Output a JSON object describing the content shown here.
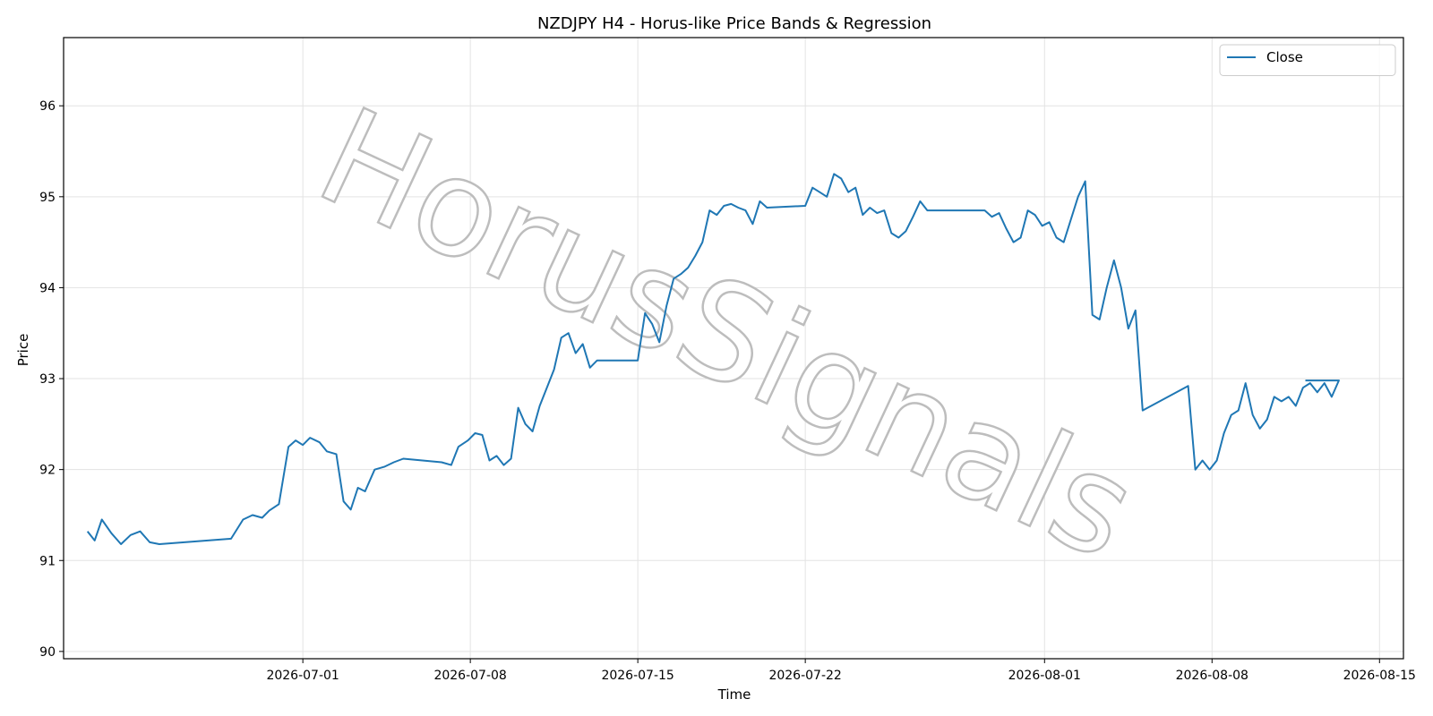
{
  "chart_data": {
    "type": "line",
    "title": "NZDJPY H4 - Horus-like Price Bands & Regression",
    "xlabel": "Time",
    "ylabel": "Price",
    "ylim": [
      89.92,
      96.75
    ],
    "xlim": [
      "2026-06-21",
      "2026-08-16"
    ],
    "yticks": [
      90,
      91,
      92,
      93,
      94,
      95,
      96
    ],
    "xticks": [
      "2026-07-01",
      "2026-07-08",
      "2026-07-15",
      "2026-07-22",
      "2026-08-01",
      "2026-08-08",
      "2026-08-15"
    ],
    "grid": true,
    "legend_position": "top-right",
    "watermark": "HorusSignals",
    "series": [
      {
        "name": "Close",
        "color": "#1f77b4",
        "points": [
          [
            "2026-06-22",
            91.32
          ],
          [
            "2026-06-22.3",
            91.22
          ],
          [
            "2026-06-22.6",
            91.45
          ],
          [
            "2026-06-23",
            91.3
          ],
          [
            "2026-06-23.4",
            91.18
          ],
          [
            "2026-06-23.8",
            91.28
          ],
          [
            "2026-06-24.2",
            91.32
          ],
          [
            "2026-06-24.6",
            91.2
          ],
          [
            "2026-06-25",
            91.18
          ],
          [
            "2026-06-28",
            91.24
          ],
          [
            "2026-06-28.5",
            91.45
          ],
          [
            "2026-06-28.9",
            91.5
          ],
          [
            "2026-06-29.3",
            91.47
          ],
          [
            "2026-06-29.6",
            91.55
          ],
          [
            "2026-06-30",
            91.62
          ],
          [
            "2026-06-30.4",
            92.25
          ],
          [
            "2026-06-30.7",
            92.32
          ],
          [
            "2026-07-01",
            92.27
          ],
          [
            "2026-07-01.3",
            92.35
          ],
          [
            "2026-07-01.7",
            92.3
          ],
          [
            "2026-07-02",
            92.2
          ],
          [
            "2026-07-02.4",
            92.17
          ],
          [
            "2026-07-02.7",
            91.65
          ],
          [
            "2026-07-03",
            91.56
          ],
          [
            "2026-07-03.3",
            91.8
          ],
          [
            "2026-07-03.6",
            91.76
          ],
          [
            "2026-07-04",
            92.0
          ],
          [
            "2026-07-04.4",
            92.03
          ],
          [
            "2026-07-04.8",
            92.08
          ],
          [
            "2026-07-05.2",
            92.12
          ],
          [
            "2026-07-06",
            92.1
          ],
          [
            "2026-07-06.8",
            92.08
          ],
          [
            "2026-07-07.2",
            92.05
          ],
          [
            "2026-07-07.5",
            92.25
          ],
          [
            "2026-07-07.9",
            92.32
          ],
          [
            "2026-07-08.2",
            92.4
          ],
          [
            "2026-07-08.5",
            92.38
          ],
          [
            "2026-07-08.8",
            92.1
          ],
          [
            "2026-07-09.1",
            92.15
          ],
          [
            "2026-07-09.4",
            92.05
          ],
          [
            "2026-07-09.7",
            92.12
          ],
          [
            "2026-07-10",
            92.68
          ],
          [
            "2026-07-10.3",
            92.5
          ],
          [
            "2026-07-10.6",
            92.42
          ],
          [
            "2026-07-10.9",
            92.7
          ],
          [
            "2026-07-11.2",
            92.9
          ],
          [
            "2026-07-11.5",
            93.1
          ],
          [
            "2026-07-11.8",
            93.45
          ],
          [
            "2026-07-12.1",
            93.5
          ],
          [
            "2026-07-12.4",
            93.28
          ],
          [
            "2026-07-12.7",
            93.38
          ],
          [
            "2026-07-13",
            93.12
          ],
          [
            "2026-07-13.3",
            93.2
          ],
          [
            "2026-07-15",
            93.2
          ],
          [
            "2026-07-15.3",
            93.72
          ],
          [
            "2026-07-15.6",
            93.6
          ],
          [
            "2026-07-15.9",
            93.4
          ],
          [
            "2026-07-16.2",
            93.8
          ],
          [
            "2026-07-16.5",
            94.1
          ],
          [
            "2026-07-16.8",
            94.15
          ],
          [
            "2026-07-17.1",
            94.22
          ],
          [
            "2026-07-17.4",
            94.35
          ],
          [
            "2026-07-17.7",
            94.5
          ],
          [
            "2026-07-18",
            94.85
          ],
          [
            "2026-07-18.3",
            94.8
          ],
          [
            "2026-07-18.6",
            94.9
          ],
          [
            "2026-07-18.9",
            94.92
          ],
          [
            "2026-07-19.2",
            94.88
          ],
          [
            "2026-07-19.5",
            94.85
          ],
          [
            "2026-07-19.8",
            94.7
          ],
          [
            "2026-07-20.1",
            94.95
          ],
          [
            "2026-07-20.4",
            94.88
          ],
          [
            "2026-07-22",
            94.9
          ],
          [
            "2026-07-22.3",
            95.1
          ],
          [
            "2026-07-22.6",
            95.05
          ],
          [
            "2026-07-22.9",
            95.0
          ],
          [
            "2026-07-23.2",
            95.25
          ],
          [
            "2026-07-23.5",
            95.2
          ],
          [
            "2026-07-23.8",
            95.05
          ],
          [
            "2026-07-24.1",
            95.1
          ],
          [
            "2026-07-24.4",
            94.8
          ],
          [
            "2026-07-24.7",
            94.88
          ],
          [
            "2026-07-25",
            94.82
          ],
          [
            "2026-07-25.3",
            94.85
          ],
          [
            "2026-07-25.6",
            94.6
          ],
          [
            "2026-07-25.9",
            94.55
          ],
          [
            "2026-07-26.2",
            94.62
          ],
          [
            "2026-07-26.5",
            94.78
          ],
          [
            "2026-07-26.8",
            94.95
          ],
          [
            "2026-07-27.1",
            94.85
          ],
          [
            "2026-07-29.5",
            94.85
          ],
          [
            "2026-07-29.8",
            94.78
          ],
          [
            "2026-07-30.1",
            94.82
          ],
          [
            "2026-07-30.4",
            94.65
          ],
          [
            "2026-07-30.7",
            94.5
          ],
          [
            "2026-07-31",
            94.55
          ],
          [
            "2026-07-31.3",
            94.85
          ],
          [
            "2026-07-31.6",
            94.8
          ],
          [
            "2026-07-31.9",
            94.68
          ],
          [
            "2026-08-01.2",
            94.72
          ],
          [
            "2026-08-01.5",
            94.55
          ],
          [
            "2026-08-01.8",
            94.5
          ],
          [
            "2026-08-02.1",
            94.75
          ],
          [
            "2026-08-02.4",
            95.0
          ],
          [
            "2026-08-02.7",
            95.17
          ],
          [
            "2026-08-03",
            93.7
          ],
          [
            "2026-08-03.3",
            93.65
          ],
          [
            "2026-08-03.6",
            94.0
          ],
          [
            "2026-08-03.9",
            94.3
          ],
          [
            "2026-08-04.2",
            94.0
          ],
          [
            "2026-08-04.5",
            93.55
          ],
          [
            "2026-08-04.8",
            93.75
          ],
          [
            "2026-08-05.1",
            92.65
          ],
          [
            "2026-08-07",
            92.92
          ],
          [
            "2026-08-07.3",
            92.0
          ],
          [
            "2026-08-07.6",
            92.1
          ],
          [
            "2026-08-07.9",
            92.0
          ],
          [
            "2026-08-08.2",
            92.1
          ],
          [
            "2026-08-08.5",
            92.4
          ],
          [
            "2026-08-08.8",
            92.6
          ],
          [
            "2026-08-09.1",
            92.65
          ],
          [
            "2026-08-09.4",
            92.95
          ],
          [
            "2026-08-09.7",
            92.6
          ],
          [
            "2026-08-10",
            92.45
          ],
          [
            "2026-08-10.3",
            92.55
          ],
          [
            "2026-08-10.6",
            92.8
          ],
          [
            "2026-08-10.9",
            92.75
          ],
          [
            "2026-08-11.2",
            92.8
          ],
          [
            "2026-08-11.5",
            92.7
          ],
          [
            "2026-08-11.8",
            92.9
          ],
          [
            "2026-08-12.1",
            92.95
          ],
          [
            "2026-08-12.4",
            92.85
          ],
          [
            "2026-08-12.7",
            92.95
          ],
          [
            "2026-08-13",
            92.8
          ],
          [
            "2026-08-13.3",
            92.98
          ],
          [
            "2026-08-11.9",
            92.98
          ]
        ]
      }
    ]
  }
}
